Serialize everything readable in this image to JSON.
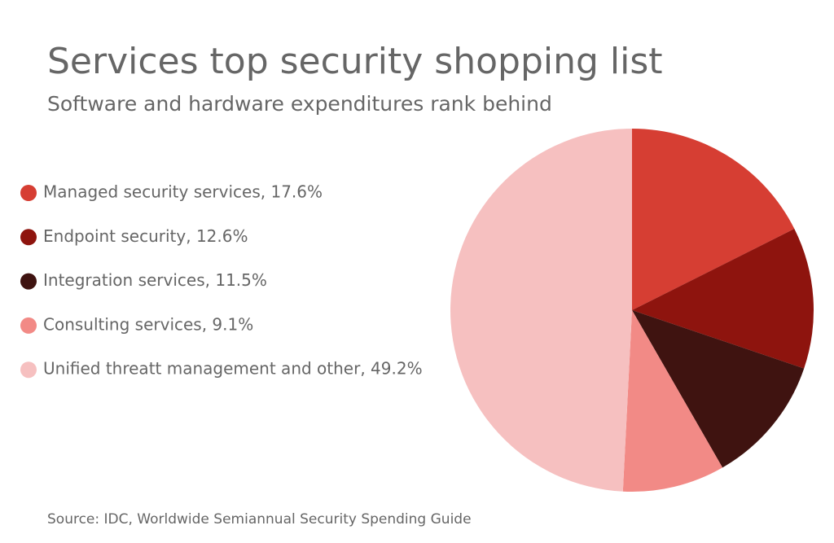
{
  "chart_data": {
    "type": "pie",
    "title": "Services top security shopping list",
    "subtitle": "Software and hardware expenditures rank behind",
    "categories": [
      "Managed security services, 17.6%",
      "Endpoint security, 12.6%",
      "Integration services, 11.5%",
      "Consulting services, 9.1%",
      "Unified threatt management and other, 49.2%"
    ],
    "values": [
      17.6,
      12.6,
      11.5,
      9.1,
      49.2
    ],
    "colors": [
      "#d63e33",
      "#8e140e",
      "#3f1310",
      "#f28a86",
      "#f6c0c0"
    ],
    "legend": "left",
    "source": "Source: IDC, Worldwide Semiannual Security Spending Guide"
  }
}
